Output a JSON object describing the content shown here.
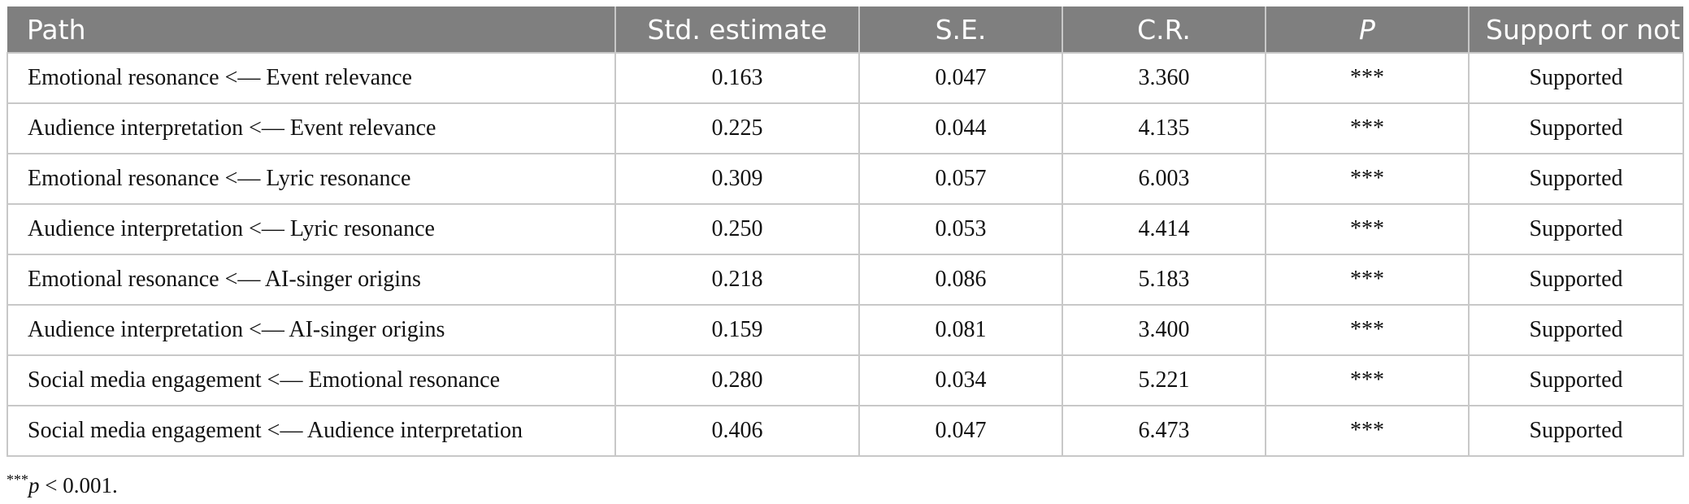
{
  "table": {
    "headers": [
      "Path",
      "Std. estimate",
      "S.E.",
      "C.R.",
      "P",
      "Support or not"
    ],
    "rows": [
      [
        "Emotional resonance <— Event relevance",
        "0.163",
        "0.047",
        "3.360",
        "***",
        "Supported"
      ],
      [
        "Audience interpretation <— Event relevance",
        "0.225",
        "0.044",
        "4.135",
        "***",
        "Supported"
      ],
      [
        "Emotional resonance <— Lyric resonance",
        "0.309",
        "0.057",
        "6.003",
        "***",
        "Supported"
      ],
      [
        "Audience interpretation <— Lyric resonance",
        "0.250",
        "0.053",
        "4.414",
        "***",
        "Supported"
      ],
      [
        "Emotional resonance <— AI-singer origins",
        "0.218",
        "0.086",
        "5.183",
        "***",
        "Supported"
      ],
      [
        "Audience interpretation <— AI-singer origins",
        "0.159",
        "0.081",
        "3.400",
        "***",
        "Supported"
      ],
      [
        "Social media engagement <— Emotional resonance",
        "0.280",
        "0.034",
        "5.221",
        "***",
        "Supported"
      ],
      [
        "Social media engagement <— Audience interpretation",
        "0.406",
        "0.047",
        "6.473",
        "***",
        "Supported"
      ]
    ]
  },
  "footnote": {
    "symbol": "***",
    "variable": "p",
    "text": " < 0.001."
  }
}
